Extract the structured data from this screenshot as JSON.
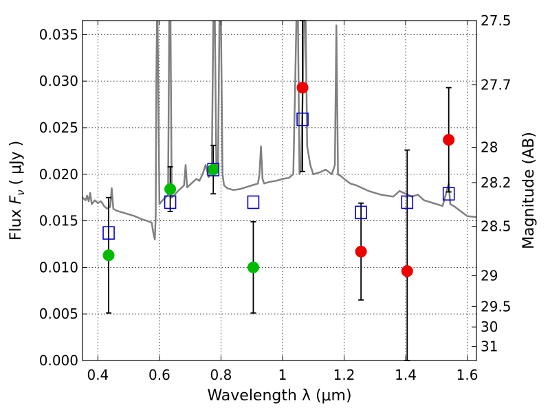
{
  "chart_data": {
    "type": "scatter",
    "xlabel": "Wavelength  λ (μm)",
    "ylabel": "Flux  F_ν  ( μJy )",
    "ylabel_right": "Magnitude (AB)",
    "xlim": [
      0.35,
      1.63
    ],
    "ylim": [
      0.0,
      0.0365
    ],
    "x_ticks": [
      0.4,
      0.6,
      0.8,
      1.0,
      1.2,
      1.4,
      1.6
    ],
    "x_tick_labels": [
      "0.4",
      "0.6",
      "0.8",
      "1",
      "1.2",
      "1.4",
      "1.6"
    ],
    "y_ticks": [
      0.0,
      0.005,
      0.01,
      0.015,
      0.02,
      0.025,
      0.03,
      0.035
    ],
    "y_tick_labels": [
      "0.000",
      "0.005",
      "0.010",
      "0.015",
      "0.020",
      "0.025",
      "0.030",
      "0.035"
    ],
    "right_ticks": [
      {
        "label": "27.5",
        "flux": 0.0365
      },
      {
        "label": "27.7",
        "flux": 0.0296
      },
      {
        "label": "28",
        "flux": 0.0229
      },
      {
        "label": "28.2",
        "flux": 0.0191
      },
      {
        "label": "28.5",
        "flux": 0.0144
      },
      {
        "label": "29",
        "flux": 0.0091
      },
      {
        "label": "29.5",
        "flux": 0.0058
      },
      {
        "label": "30",
        "flux": 0.0036
      },
      {
        "label": "31",
        "flux": 0.0015
      }
    ],
    "grid": true,
    "colors": {
      "spectrum": "#808080",
      "optical": "#00bb00",
      "nir": "#ee0000",
      "model": "#0000cc",
      "errorbar": "#000000"
    },
    "series": [
      {
        "kind": "line",
        "points": [
          [
            0.35,
            0.0175
          ],
          [
            0.36,
            0.0172
          ],
          [
            0.365,
            0.0177
          ],
          [
            0.37,
            0.0171
          ],
          [
            0.375,
            0.018
          ],
          [
            0.38,
            0.0168
          ],
          [
            0.39,
            0.0172
          ],
          [
            0.4,
            0.0169
          ],
          [
            0.41,
            0.0171
          ],
          [
            0.42,
            0.0166
          ],
          [
            0.43,
            0.0163
          ],
          [
            0.44,
            0.0165
          ],
          [
            0.445,
            0.0185
          ],
          [
            0.45,
            0.0163
          ],
          [
            0.46,
            0.0161
          ],
          [
            0.48,
            0.0159
          ],
          [
            0.5,
            0.0157
          ],
          [
            0.52,
            0.0155
          ],
          [
            0.54,
            0.0152
          ],
          [
            0.56,
            0.015
          ],
          [
            0.575,
            0.0148
          ],
          [
            0.58,
            0.0137
          ],
          [
            0.585,
            0.013
          ],
          [
            0.588,
            0.0155
          ],
          [
            0.59,
            0.03
          ],
          [
            0.592,
            0.0365
          ],
          [
            0.594,
            0.0365
          ],
          [
            0.596,
            0.03
          ],
          [
            0.6,
            0.0168
          ],
          [
            0.61,
            0.0172
          ],
          [
            0.62,
            0.0175
          ],
          [
            0.628,
            0.0178
          ],
          [
            0.632,
            0.0365
          ],
          [
            0.636,
            0.0365
          ],
          [
            0.64,
            0.0175
          ],
          [
            0.65,
            0.0178
          ],
          [
            0.66,
            0.0182
          ],
          [
            0.67,
            0.0185
          ],
          [
            0.68,
            0.0188
          ],
          [
            0.685,
            0.021
          ],
          [
            0.69,
            0.0186
          ],
          [
            0.7,
            0.0189
          ],
          [
            0.71,
            0.0192
          ],
          [
            0.72,
            0.0195
          ],
          [
            0.73,
            0.0193
          ],
          [
            0.74,
            0.02
          ],
          [
            0.75,
            0.021
          ],
          [
            0.76,
            0.0197
          ],
          [
            0.77,
            0.0205
          ],
          [
            0.775,
            0.0365
          ],
          [
            0.78,
            0.0365
          ],
          [
            0.785,
            0.0205
          ],
          [
            0.79,
            0.0203
          ],
          [
            0.795,
            0.0365
          ],
          [
            0.8,
            0.0365
          ],
          [
            0.805,
            0.02
          ],
          [
            0.81,
            0.0188
          ],
          [
            0.82,
            0.0185
          ],
          [
            0.84,
            0.0183
          ],
          [
            0.86,
            0.0184
          ],
          [
            0.88,
            0.0186
          ],
          [
            0.9,
            0.0188
          ],
          [
            0.92,
            0.019
          ],
          [
            0.925,
            0.02
          ],
          [
            0.93,
            0.023
          ],
          [
            0.935,
            0.0195
          ],
          [
            0.94,
            0.019
          ],
          [
            0.96,
            0.0192
          ],
          [
            0.98,
            0.0193
          ],
          [
            1.0,
            0.0195
          ],
          [
            1.02,
            0.0196
          ],
          [
            1.035,
            0.02
          ],
          [
            1.04,
            0.028
          ],
          [
            1.045,
            0.0365
          ],
          [
            1.05,
            0.0365
          ],
          [
            1.055,
            0.02
          ],
          [
            1.06,
            0.0205
          ],
          [
            1.065,
            0.028
          ],
          [
            1.07,
            0.0365
          ],
          [
            1.075,
            0.0365
          ],
          [
            1.08,
            0.023
          ],
          [
            1.09,
            0.021
          ],
          [
            1.1,
            0.02
          ],
          [
            1.12,
            0.0202
          ],
          [
            1.14,
            0.0205
          ],
          [
            1.16,
            0.02
          ],
          [
            1.17,
            0.021
          ],
          [
            1.175,
            0.036
          ],
          [
            1.18,
            0.02
          ],
          [
            1.19,
            0.0198
          ],
          [
            1.2,
            0.0195
          ],
          [
            1.22,
            0.019
          ],
          [
            1.24,
            0.0188
          ],
          [
            1.26,
            0.0185
          ],
          [
            1.28,
            0.0182
          ],
          [
            1.3,
            0.018
          ],
          [
            1.32,
            0.0178
          ],
          [
            1.34,
            0.0177
          ],
          [
            1.36,
            0.0176
          ],
          [
            1.38,
            0.0182
          ],
          [
            1.4,
            0.0179
          ],
          [
            1.42,
            0.0176
          ],
          [
            1.44,
            0.0178
          ],
          [
            1.46,
            0.0172
          ],
          [
            1.48,
            0.017
          ],
          [
            1.5,
            0.0168
          ],
          [
            1.52,
            0.0166
          ],
          [
            1.54,
            0.019
          ],
          [
            1.545,
            0.0168
          ],
          [
            1.56,
            0.0165
          ],
          [
            1.58,
            0.016
          ],
          [
            1.6,
            0.0155
          ],
          [
            1.63,
            0.0154
          ]
        ]
      },
      {
        "kind": "points",
        "marker": "circle-green",
        "x": [
          0.435,
          0.635,
          0.775,
          0.905
        ],
        "y": [
          0.0113,
          0.0184,
          0.0205,
          0.01
        ],
        "err": [
          0.0062,
          0.0024,
          0.0026,
          0.0049
        ]
      },
      {
        "kind": "points",
        "marker": "circle-red",
        "x": [
          1.065,
          1.255,
          1.405,
          1.54
        ],
        "y": [
          0.0293,
          0.0117,
          0.0096,
          0.0237
        ],
        "err": [
          0.009,
          0.0052,
          0.013,
          0.0056
        ]
      },
      {
        "kind": "points",
        "marker": "square-blue",
        "x": [
          0.435,
          0.635,
          0.775,
          0.905,
          1.065,
          1.255,
          1.405,
          1.54
        ],
        "y": [
          0.0137,
          0.017,
          0.0205,
          0.017,
          0.0259,
          0.0159,
          0.017,
          0.0179
        ]
      }
    ]
  }
}
